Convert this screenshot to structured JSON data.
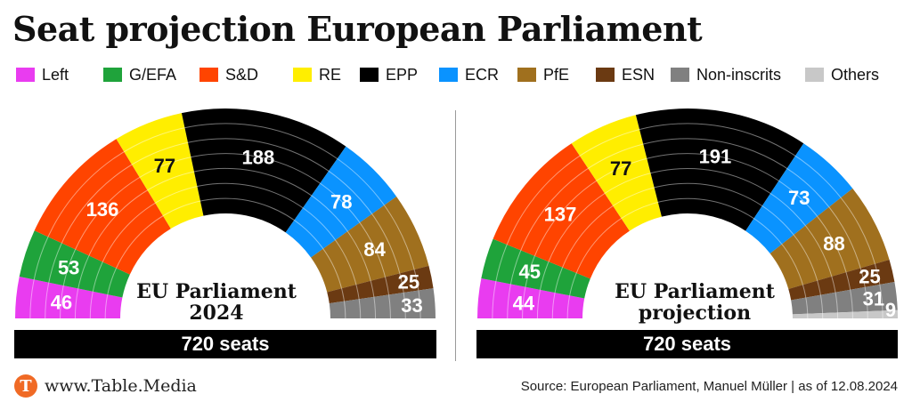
{
  "title": "Seat projection European Parliament",
  "legend": [
    {
      "label": "Left",
      "color": "#e93cf0"
    },
    {
      "label": "G/EFA",
      "color": "#1fa33b"
    },
    {
      "label": "S&D",
      "color": "#ff4400"
    },
    {
      "label": "RE",
      "color": "#ffee00"
    },
    {
      "label": "EPP",
      "color": "#000000"
    },
    {
      "label": "ECR",
      "color": "#0a93ff"
    },
    {
      "label": "PfE",
      "color": "#a0701e"
    },
    {
      "label": "ESN",
      "color": "#6b3a12"
    },
    {
      "label": "Non-inscrits",
      "color": "#808080"
    },
    {
      "label": "Others",
      "color": "#c8c8c8"
    }
  ],
  "chart_data": [
    {
      "type": "pie",
      "subtype": "parliament-hemicycle",
      "caption_line1": "EU Parliament",
      "caption_line2": "2024",
      "total_label": "720 seats",
      "total": 720,
      "segments": [
        {
          "group": "Left",
          "value": 46,
          "label": "46",
          "color": "#e93cf0"
        },
        {
          "group": "G/EFA",
          "value": 53,
          "label": "53",
          "color": "#1fa33b"
        },
        {
          "group": "S&D",
          "value": 136,
          "label": "136",
          "color": "#ff4400"
        },
        {
          "group": "RE",
          "value": 77,
          "label": "77",
          "color": "#ffee00"
        },
        {
          "group": "EPP",
          "value": 188,
          "label": "188",
          "color": "#000000"
        },
        {
          "group": "ECR",
          "value": 78,
          "label": "78",
          "color": "#0a93ff"
        },
        {
          "group": "PfE",
          "value": 84,
          "label": "84",
          "color": "#a0701e"
        },
        {
          "group": "ESN",
          "value": 25,
          "label": "25",
          "color": "#6b3a12"
        },
        {
          "group": "Non-inscrits",
          "value": 33,
          "label": "33",
          "color": "#808080"
        }
      ]
    },
    {
      "type": "pie",
      "subtype": "parliament-hemicycle",
      "caption_line1": "EU Parliament",
      "caption_line2": "projection",
      "total_label": "720 seats",
      "total": 720,
      "segments": [
        {
          "group": "Left",
          "value": 44,
          "label": "44",
          "color": "#e93cf0"
        },
        {
          "group": "G/EFA",
          "value": 45,
          "label": "45",
          "color": "#1fa33b"
        },
        {
          "group": "S&D",
          "value": 137,
          "label": "137",
          "color": "#ff4400"
        },
        {
          "group": "RE",
          "value": 77,
          "label": "77",
          "color": "#ffee00"
        },
        {
          "group": "EPP",
          "value": 191,
          "label": "191",
          "color": "#000000"
        },
        {
          "group": "ECR",
          "value": 73,
          "label": "73",
          "color": "#0a93ff"
        },
        {
          "group": "PfE",
          "value": 88,
          "label": "88",
          "color": "#a0701e"
        },
        {
          "group": "ESN",
          "value": 25,
          "label": "25",
          "color": "#6b3a12"
        },
        {
          "group": "Non-inscrits",
          "value": 31,
          "label": "31",
          "color": "#808080"
        },
        {
          "group": "Others",
          "value": 9,
          "label": "9",
          "color": "#c8c8c8"
        }
      ]
    }
  ],
  "footer": {
    "logo_letter": "T",
    "site": "www.Table.Media",
    "source": "Source: European Parliament, Manuel Müller | as of 12.08.2024"
  }
}
